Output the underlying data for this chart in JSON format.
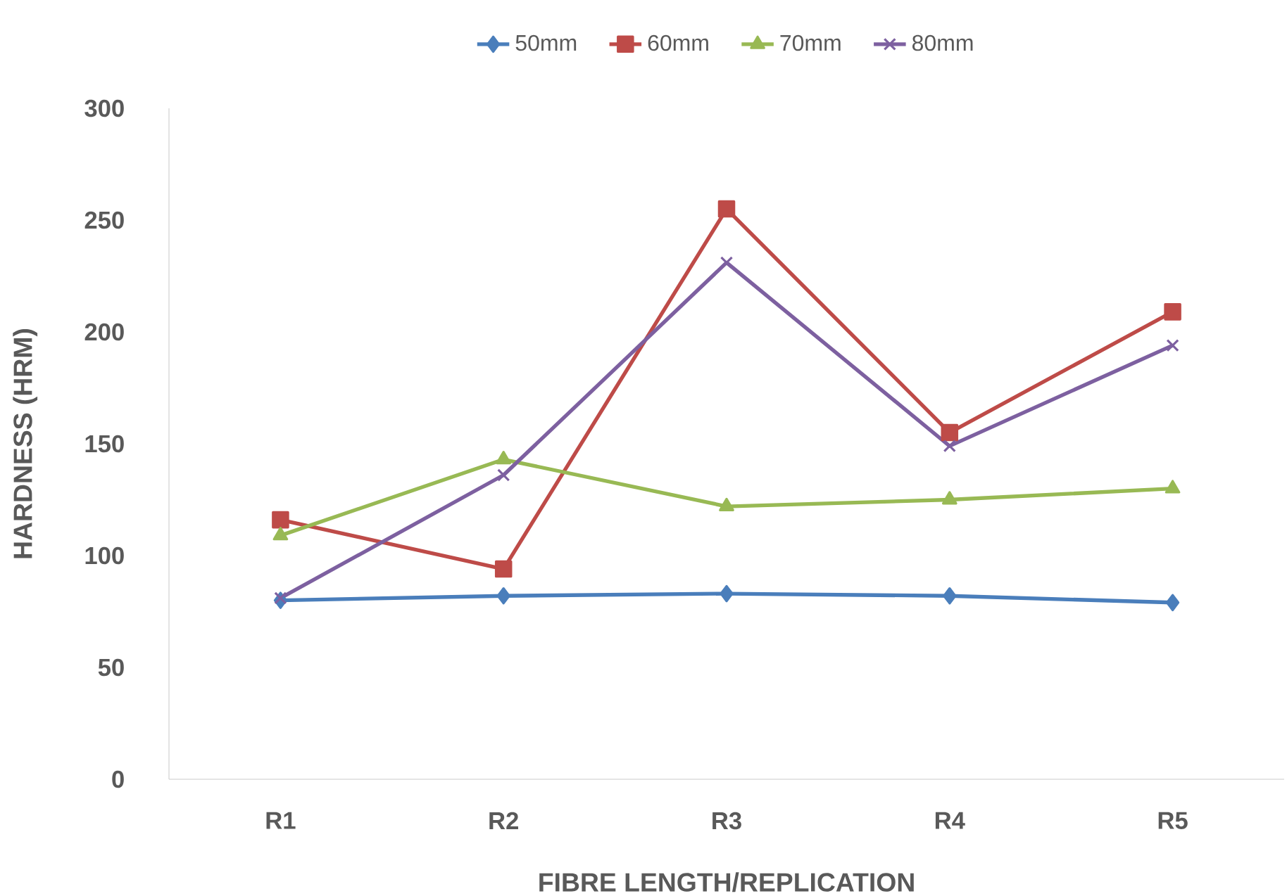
{
  "chart_data": {
    "type": "line",
    "xlabel": "FIBRE LENGTH/REPLICATION",
    "ylabel": "HARDNESS (HRM)",
    "categories": [
      "R1",
      "R2",
      "R3",
      "R4",
      "R5"
    ],
    "series": [
      {
        "name": "50mm",
        "color": "#4a7ebb",
        "marker": "diamond",
        "values": [
          80,
          82,
          83,
          82,
          79
        ]
      },
      {
        "name": "60mm",
        "color": "#be4b48",
        "marker": "square",
        "values": [
          116,
          94,
          255,
          155,
          209
        ]
      },
      {
        "name": "70mm",
        "color": "#98b954",
        "marker": "triangle",
        "values": [
          109,
          143,
          122,
          125,
          130
        ]
      },
      {
        "name": "80mm",
        "color": "#7d60a0",
        "marker": "cross",
        "values": [
          81,
          136,
          231,
          149,
          194
        ]
      }
    ],
    "ylim": [
      0,
      300
    ],
    "yticks": [
      0,
      50,
      100,
      150,
      200,
      250,
      300
    ],
    "grid": false,
    "legend": "top",
    "line_style": "solid"
  }
}
